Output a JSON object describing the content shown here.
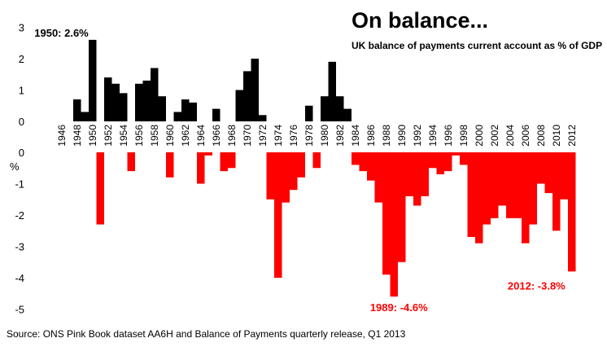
{
  "chart_data": {
    "type": "bar",
    "title": "On balance...",
    "subtitle": "UK balance of payments current account as % of GDP",
    "ylabel": "%",
    "xlabel": "",
    "ylim": [
      -5,
      3
    ],
    "yticks": [
      3,
      2,
      1,
      0,
      -1,
      -2,
      -3,
      -4,
      -5
    ],
    "xtick_labels": [
      "1946",
      "1948",
      "1950",
      "1952",
      "1954",
      "1956",
      "1958",
      "1960",
      "1962",
      "1964",
      "1966",
      "1968",
      "1970",
      "1972",
      "1974",
      "1976",
      "1978",
      "1980",
      "1982",
      "1984",
      "1986",
      "1988",
      "1990",
      "1992",
      "1994",
      "1996",
      "1998",
      "2000",
      "2002",
      "2004",
      "2006",
      "2008",
      "2010",
      "2012"
    ],
    "years": [
      1946,
      1947,
      1948,
      1949,
      1950,
      1951,
      1952,
      1953,
      1954,
      1955,
      1956,
      1957,
      1958,
      1959,
      1960,
      1961,
      1962,
      1963,
      1964,
      1965,
      1966,
      1967,
      1968,
      1969,
      1970,
      1971,
      1972,
      1973,
      1974,
      1975,
      1976,
      1977,
      1978,
      1979,
      1980,
      1981,
      1982,
      1983,
      1984,
      1985,
      1986,
      1987,
      1988,
      1989,
      1990,
      1991,
      1992,
      1993,
      1994,
      1995,
      1996,
      1997,
      1998,
      1999,
      2000,
      2001,
      2002,
      2003,
      2004,
      2005,
      2006,
      2007,
      2008,
      2009,
      2010,
      2011,
      2012
    ],
    "values": [
      0,
      0,
      0.7,
      0.3,
      2.6,
      -2.3,
      1.4,
      1.2,
      0.9,
      -0.6,
      1.2,
      1.3,
      1.7,
      0.8,
      -0.8,
      0.3,
      0.7,
      0.6,
      -1.0,
      -0.1,
      0.4,
      -0.6,
      -0.5,
      1.0,
      1.6,
      2.0,
      0.2,
      -1.5,
      -4.0,
      -1.6,
      -1.2,
      -0.8,
      0.5,
      -0.5,
      0.8,
      1.9,
      0.8,
      0.4,
      -0.4,
      -0.6,
      -0.9,
      -1.6,
      -3.9,
      -4.6,
      -3.5,
      -1.4,
      -1.7,
      -1.4,
      -0.5,
      -0.7,
      -0.6,
      -0.1,
      -0.4,
      -2.7,
      -2.9,
      -2.3,
      -2.1,
      -1.7,
      -2.1,
      -2.1,
      -2.9,
      -2.3,
      -1.0,
      -1.3,
      -2.5,
      -1.5,
      -3.8
    ],
    "positive_color": "#000000",
    "negative_color": "#ff0000",
    "annotations": [
      {
        "text": "1950: 2.6%",
        "year": 1950,
        "color": "#000000"
      },
      {
        "text": "1989: -4.6%",
        "year": 1989,
        "color": "#ff0000"
      },
      {
        "text": "2012: -3.8%",
        "year": 2012,
        "color": "#ff0000"
      }
    ],
    "source": "Source: ONS Pink Book dataset AA6H and Balance of Payments quarterly release, Q1 2013"
  }
}
